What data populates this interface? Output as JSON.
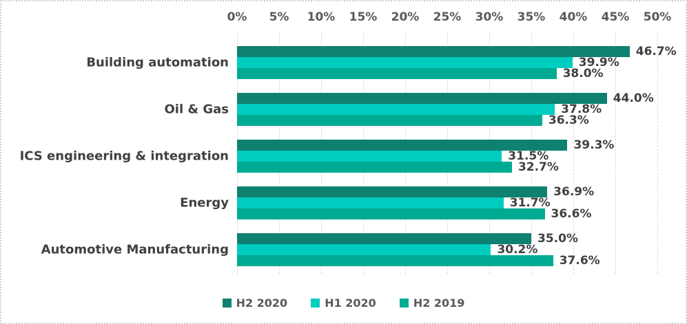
{
  "chart_data": {
    "type": "bar",
    "orientation": "horizontal",
    "title": "",
    "categories": [
      "Building automation",
      "Oil & Gas",
      "ICS engineering & integration",
      "Energy",
      "Automotive Manufacturing"
    ],
    "series": [
      {
        "name": "H2 2020",
        "color": "#0e8170",
        "values": [
          46.7,
          44.0,
          39.3,
          36.9,
          35.0
        ],
        "labels": [
          "46.7%",
          "44.0%",
          "39.3%",
          "36.9%",
          "35.0%"
        ]
      },
      {
        "name": "H1 2020",
        "color": "#00ccc0",
        "values": [
          39.9,
          37.8,
          31.5,
          31.7,
          30.2
        ],
        "labels": [
          "39.9%",
          "37.8%",
          "31.5%",
          "31.7%",
          "30.2%"
        ]
      },
      {
        "name": "H2 2019",
        "color": "#00ab93",
        "values": [
          38.0,
          36.3,
          32.7,
          36.6,
          37.6
        ],
        "labels": [
          "38.0%",
          "36.3%",
          "32.7%",
          "36.6%",
          "37.6%"
        ]
      }
    ],
    "x_axis": {
      "position": "top",
      "min": 0,
      "max": 50,
      "tick_step": 5,
      "tick_labels": [
        "0%",
        "5%",
        "10%",
        "15%",
        "20%",
        "25%",
        "30%",
        "35%",
        "40%",
        "45%",
        "50%"
      ]
    },
    "legend": {
      "position": "bottom",
      "entries": [
        "H2 2020",
        "H1 2020",
        "H2 2019"
      ]
    },
    "grid": true
  },
  "styles": {
    "background": "#ffffff",
    "border_color": "#cfcfcf",
    "grid_color": "#d9d9d9",
    "axis_label_color": "#595959",
    "data_label_color": "#404040",
    "category_label_color": "#404040"
  }
}
